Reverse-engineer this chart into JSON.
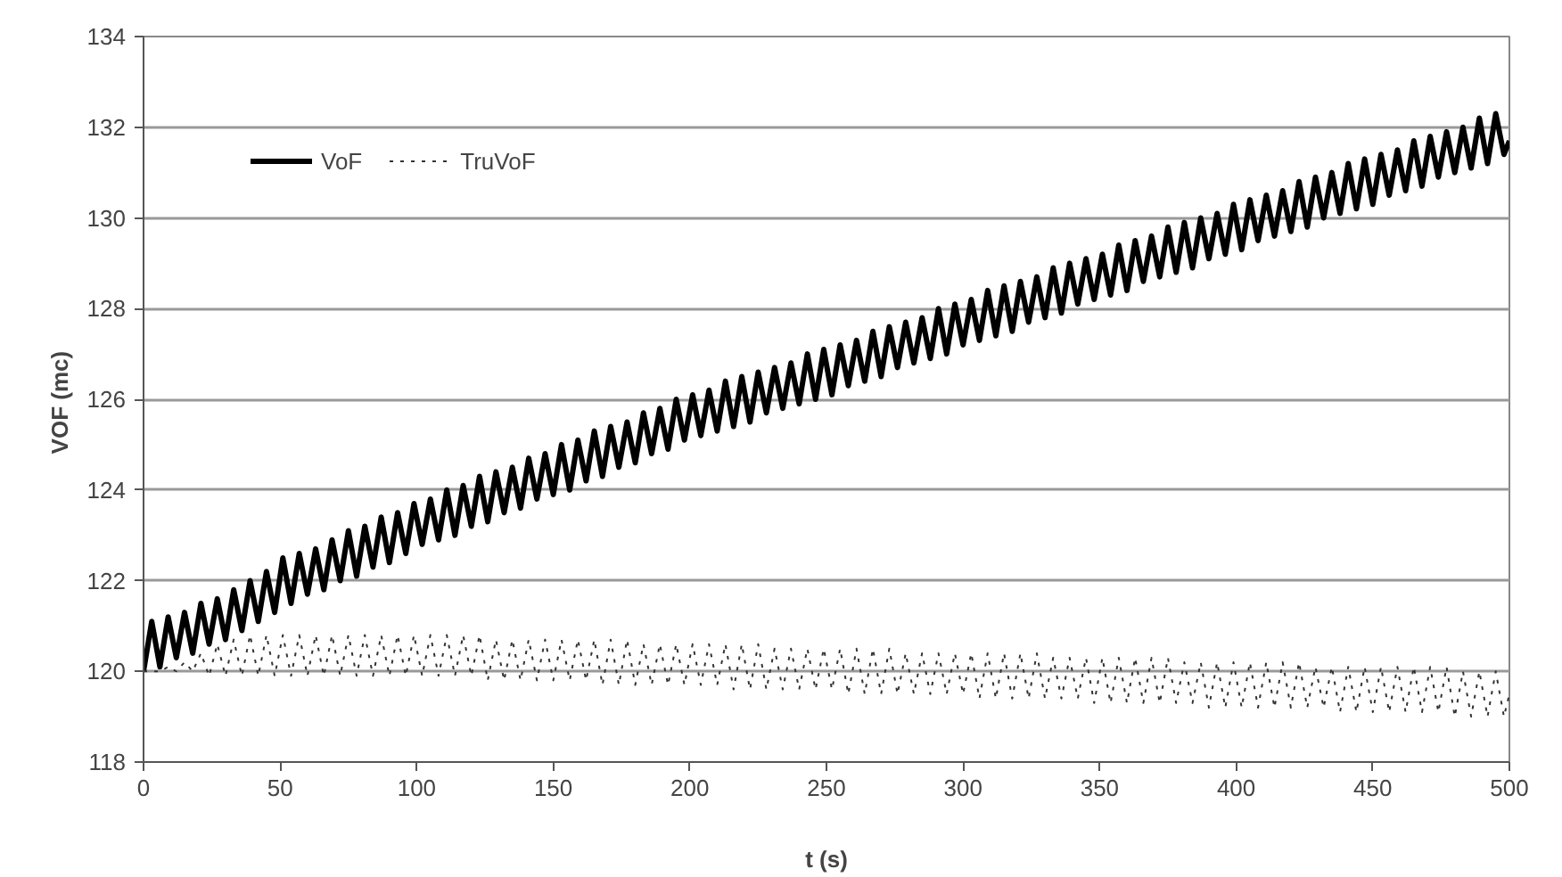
{
  "chart_data": {
    "type": "line",
    "xlabel": "t (s)",
    "ylabel": "VOF  (mc)",
    "xlim": [
      0,
      500
    ],
    "xticks": [
      0,
      50,
      100,
      150,
      200,
      250,
      300,
      350,
      400,
      450,
      500
    ],
    "ylim": [
      118,
      134
    ],
    "yticks": [
      118,
      120,
      122,
      124,
      126,
      128,
      130,
      132,
      134
    ],
    "grid": "y",
    "legend": "top left",
    "marker": "none",
    "x": [
      0,
      3,
      6,
      9,
      12,
      15,
      18,
      21,
      24,
      27,
      30,
      33,
      36,
      39,
      42,
      45,
      48,
      51,
      54,
      57,
      60,
      63,
      66,
      69,
      72,
      75,
      78,
      81,
      84,
      87,
      90,
      93,
      96,
      99,
      102,
      105,
      108,
      111,
      114,
      117,
      120,
      123,
      126,
      129,
      132,
      135,
      138,
      141,
      144,
      147,
      150,
      153,
      156,
      159,
      162,
      165,
      168,
      171,
      174,
      177,
      180,
      183,
      186,
      189,
      192,
      195,
      198,
      201,
      204,
      207,
      210,
      213,
      216,
      219,
      222,
      225,
      228,
      231,
      234,
      237,
      240,
      243,
      246,
      249,
      252,
      255,
      258,
      261,
      264,
      267,
      270,
      273,
      276,
      279,
      282,
      285,
      288,
      291,
      294,
      297,
      300,
      303,
      306,
      309,
      312,
      315,
      318,
      321,
      324,
      327,
      330,
      333,
      336,
      339,
      342,
      345,
      348,
      351,
      354,
      357,
      360,
      363,
      366,
      369,
      372,
      375,
      378,
      381,
      384,
      387,
      390,
      393,
      396,
      399,
      402,
      405,
      408,
      411,
      414,
      417,
      420,
      423,
      426,
      429,
      432,
      435,
      438,
      441,
      444,
      447,
      450,
      453,
      456,
      459,
      462,
      465,
      468,
      471,
      474,
      477,
      480,
      483,
      486,
      489,
      492,
      495,
      498,
      500
    ],
    "series": [
      {
        "name": "VoF",
        "color": "#000000",
        "line_style": "solid",
        "values": [
          120.0,
          121.1,
          120.1,
          121.2,
          120.3,
          121.3,
          120.4,
          121.5,
          120.6,
          121.6,
          120.7,
          121.8,
          120.9,
          122.0,
          121.1,
          122.2,
          121.3,
          122.5,
          121.5,
          122.6,
          121.7,
          122.7,
          121.8,
          122.9,
          122.0,
          123.1,
          122.1,
          123.2,
          122.3,
          123.4,
          122.4,
          123.5,
          122.6,
          123.7,
          122.8,
          123.8,
          122.9,
          124.0,
          123.0,
          124.1,
          123.2,
          124.3,
          123.3,
          124.4,
          123.5,
          124.5,
          123.6,
          124.7,
          123.8,
          124.8,
          123.9,
          125.0,
          124.0,
          125.1,
          124.2,
          125.3,
          124.3,
          125.4,
          124.5,
          125.5,
          124.6,
          125.7,
          124.8,
          125.8,
          124.9,
          126.0,
          125.1,
          126.1,
          125.2,
          126.2,
          125.3,
          126.4,
          125.4,
          126.5,
          125.5,
          126.6,
          125.7,
          126.7,
          125.8,
          126.8,
          125.9,
          127.0,
          126.0,
          127.1,
          126.1,
          127.2,
          126.3,
          127.3,
          126.4,
          127.5,
          126.5,
          127.6,
          126.7,
          127.7,
          126.8,
          127.8,
          126.9,
          128.0,
          127.0,
          128.1,
          127.2,
          128.2,
          127.3,
          128.4,
          127.4,
          128.5,
          127.5,
          128.6,
          127.7,
          128.7,
          127.8,
          128.9,
          127.9,
          129.0,
          128.1,
          129.1,
          128.2,
          129.2,
          128.3,
          129.4,
          128.4,
          129.5,
          128.6,
          129.6,
          128.7,
          129.8,
          128.8,
          129.9,
          128.9,
          130.0,
          129.1,
          130.1,
          129.2,
          130.3,
          129.3,
          130.4,
          129.5,
          130.5,
          129.6,
          130.6,
          129.7,
          130.8,
          129.8,
          130.9,
          130.0,
          131.0,
          130.1,
          131.2,
          130.2,
          131.3,
          130.3,
          131.4,
          130.5,
          131.5,
          130.6,
          131.7,
          130.7,
          131.8,
          130.9,
          131.9,
          131.0,
          132.0,
          131.1,
          132.2,
          131.2,
          132.3,
          131.4,
          131.7
        ]
      },
      {
        "name": "TruVoF",
        "color": "#333333",
        "line_style": "dotted",
        "values": [
          120.0,
          120.0,
          120.0,
          120.1,
          120.0,
          120.2,
          120.0,
          120.4,
          119.9,
          120.6,
          119.9,
          120.7,
          119.9,
          120.8,
          119.9,
          120.8,
          119.9,
          120.8,
          119.9,
          120.8,
          119.9,
          120.8,
          119.9,
          120.8,
          119.9,
          120.8,
          119.9,
          120.8,
          119.9,
          120.8,
          119.9,
          120.8,
          119.9,
          120.8,
          119.9,
          120.8,
          119.9,
          120.8,
          119.9,
          120.8,
          119.9,
          120.8,
          119.8,
          120.7,
          119.8,
          120.7,
          119.8,
          120.7,
          119.8,
          120.7,
          119.8,
          120.7,
          119.8,
          120.7,
          119.8,
          120.7,
          119.7,
          120.7,
          119.7,
          120.7,
          119.7,
          120.6,
          119.7,
          120.6,
          119.7,
          120.6,
          119.7,
          120.6,
          119.7,
          120.6,
          119.7,
          120.6,
          119.6,
          120.6,
          119.6,
          120.6,
          119.6,
          120.5,
          119.6,
          120.5,
          119.6,
          120.5,
          119.6,
          120.5,
          119.6,
          120.5,
          119.5,
          120.5,
          119.5,
          120.5,
          119.5,
          120.5,
          119.5,
          120.4,
          119.5,
          120.4,
          119.5,
          120.4,
          119.5,
          120.4,
          119.5,
          120.4,
          119.4,
          120.4,
          119.4,
          120.4,
          119.4,
          120.4,
          119.4,
          120.4,
          119.4,
          120.3,
          119.4,
          120.3,
          119.4,
          120.3,
          119.3,
          120.3,
          119.3,
          120.3,
          119.3,
          120.3,
          119.3,
          120.3,
          119.3,
          120.3,
          119.3,
          120.2,
          119.3,
          120.2,
          119.2,
          120.2,
          119.2,
          120.2,
          119.2,
          120.2,
          119.2,
          120.2,
          119.2,
          120.2,
          119.2,
          120.2,
          119.2,
          120.1,
          119.2,
          120.1,
          119.1,
          120.1,
          119.1,
          120.1,
          119.1,
          120.1,
          119.1,
          120.1,
          119.1,
          120.1,
          119.1,
          120.1,
          119.1,
          120.1,
          119.0,
          120.0,
          119.0,
          120.0,
          119.0,
          120.0,
          119.0,
          119.5
        ]
      }
    ]
  }
}
